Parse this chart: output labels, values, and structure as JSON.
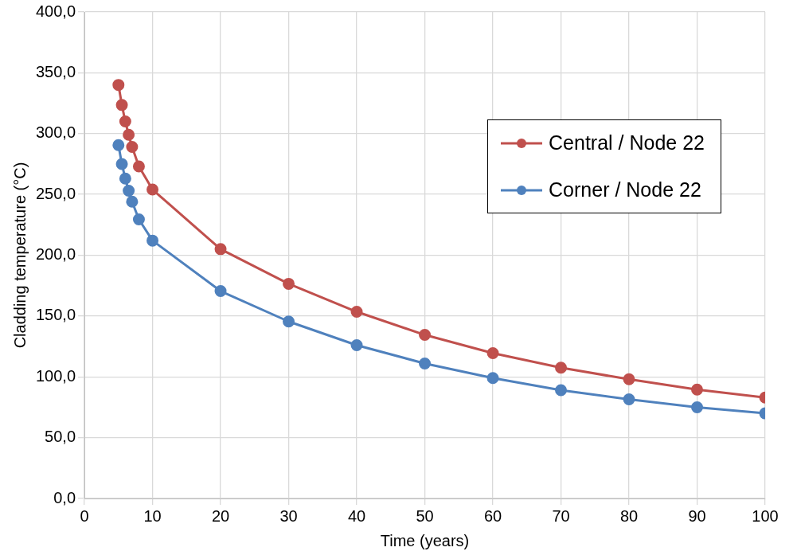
{
  "chart_data": {
    "type": "line",
    "xlabel": "Time (years)",
    "ylabel": "Cladding temperature (°C)",
    "xlim": [
      0,
      100
    ],
    "xticks": [
      0,
      10,
      20,
      30,
      40,
      50,
      60,
      70,
      80,
      90,
      100
    ],
    "ylim": [
      0,
      400
    ],
    "yticks": [
      {
        "value": 0,
        "label": "0,0"
      },
      {
        "value": 50,
        "label": "50,0"
      },
      {
        "value": 100,
        "label": "100,0"
      },
      {
        "value": 150,
        "label": "150,0"
      },
      {
        "value": 200,
        "label": "200,0"
      },
      {
        "value": 250,
        "label": "250,0"
      },
      {
        "value": 300,
        "label": "300,0"
      },
      {
        "value": 350,
        "label": "350,0"
      },
      {
        "value": 400,
        "label": "400,0"
      }
    ],
    "x": [
      5,
      5.5,
      6,
      6.5,
      7,
      8,
      10,
      20,
      30,
      40,
      50,
      60,
      70,
      80,
      90,
      100
    ],
    "series": [
      {
        "name": "Central / Node 22",
        "color": "#c0504d",
        "values": [
          340,
          323.5,
          310,
          299,
          289,
          273,
          254,
          205,
          176.5,
          153.5,
          134.5,
          119.5,
          107.5,
          98,
          89.5,
          83
        ]
      },
      {
        "name": "Corner / Node 22",
        "color": "#4f81bd",
        "values": [
          290.5,
          275,
          263,
          253,
          244,
          229.5,
          212,
          170.5,
          145.5,
          126,
          111,
          99,
          89,
          81.5,
          75,
          70
        ]
      }
    ],
    "grid": true,
    "legend": "right",
    "marker": "circle",
    "line_style": "solid"
  }
}
